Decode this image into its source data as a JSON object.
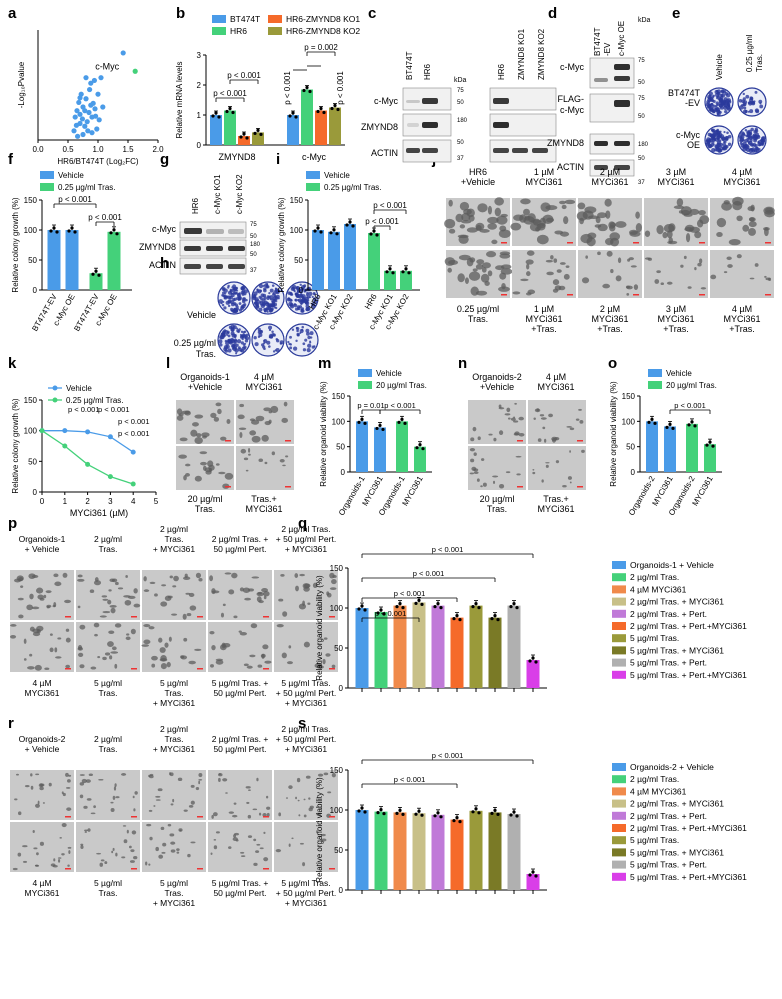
{
  "panel_labels": [
    "a",
    "b",
    "c",
    "d",
    "e",
    "f",
    "g",
    "h",
    "i",
    "j",
    "k",
    "l",
    "m",
    "n",
    "o",
    "p",
    "q",
    "r",
    "s"
  ],
  "colors": {
    "blue": "#4a9be8",
    "green": "#44d17a",
    "orange": "#f56a2a",
    "olive": "#9a9a3a",
    "salmon": "#f08a4b",
    "pistachio": "#c8c088",
    "purple": "#c07ad8",
    "darkolive": "#7a7a26",
    "grey": "#b0b0b0",
    "magenta": "#d93ee8"
  },
  "pvals": {
    "p001": "p < 0.001",
    "p002": "p = 0.002",
    "p01": "p = 0.01"
  },
  "a": {
    "chart_data": {
      "type": "scatter",
      "xlabel": "HR6/BT474T (Log₂FC)",
      "ylabel": "-Log₁₀Pvalue",
      "xlim": [
        0.0,
        2.0
      ],
      "ylim": [
        0,
        12
      ],
      "xticks": [
        "0.0",
        "0.5",
        "1.0",
        "1.5",
        "2.0"
      ],
      "annotation": "c-Myc",
      "highlight": {
        "x": 1.62,
        "y": 7.5
      },
      "points": [
        [
          0.62,
          2.5
        ],
        [
          0.65,
          3.2
        ],
        [
          0.68,
          4.1
        ],
        [
          0.7,
          2.8
        ],
        [
          0.72,
          5.0
        ],
        [
          0.75,
          3.6
        ],
        [
          0.78,
          1.5
        ],
        [
          0.8,
          4.5
        ],
        [
          0.82,
          2.0
        ],
        [
          0.85,
          3.0
        ],
        [
          0.86,
          5.5
        ],
        [
          0.88,
          6.2
        ],
        [
          0.9,
          2.5
        ],
        [
          0.92,
          4.0
        ],
        [
          0.95,
          3.4
        ],
        [
          0.98,
          1.2
        ],
        [
          1.0,
          5.0
        ],
        [
          1.02,
          2.2
        ],
        [
          1.05,
          6.8
        ],
        [
          0.6,
          1.0
        ],
        [
          0.7,
          1.8
        ],
        [
          0.75,
          0.6
        ],
        [
          0.83,
          1.0
        ],
        [
          0.9,
          0.8
        ],
        [
          0.96,
          2.6
        ],
        [
          1.08,
          3.6
        ],
        [
          0.66,
          0.4
        ],
        [
          0.74,
          2.3
        ],
        [
          0.88,
          3.8
        ],
        [
          0.94,
          6.5
        ],
        [
          0.8,
          6.8
        ],
        [
          0.7,
          4.6
        ],
        [
          1.42,
          9.5
        ],
        [
          0.64,
          1.6
        ],
        [
          0.78,
          3.2
        ]
      ]
    }
  },
  "b": {
    "chart_data": {
      "type": "bar",
      "ylabel": "Relative mRNA levels",
      "ylim": [
        0,
        3
      ],
      "yticks": [
        "0",
        "1",
        "2",
        "3"
      ],
      "categories": [
        "ZMYND8",
        "c-Myc"
      ],
      "series": [
        {
          "name": "BT474T",
          "values": [
            1.0,
            1.0
          ]
        },
        {
          "name": "HR6",
          "values": [
            1.15,
            1.85
          ]
        },
        {
          "name": "HR6-ZMYND8 KO1",
          "values": [
            0.3,
            1.15
          ]
        },
        {
          "name": "HR6-ZMYND8 KO2",
          "values": [
            0.42,
            1.25
          ]
        }
      ]
    }
  },
  "c": {
    "lanes1": [
      "BT474T",
      "HR6"
    ],
    "lanes2": [
      "HR6",
      "ZMYND8 KO1",
      "ZMYND8 KO2"
    ],
    "rows": [
      "c-Myc",
      "ZMYND8",
      "ACTIN"
    ],
    "kda": "kDa",
    "mw": [
      "75",
      "50",
      "180",
      "50",
      "37"
    ]
  },
  "d": {
    "lanes": [
      "BT474T-EV",
      "c-Myc OE"
    ],
    "rows": [
      "c-Myc",
      "FLAG-c-Myc",
      "ZMYND8",
      "ACTIN"
    ],
    "kda": "kDa",
    "mw": [
      "75",
      "50",
      "75",
      "50",
      "180",
      "50",
      "37"
    ]
  },
  "e": {
    "cols": [
      "Vehicle",
      "0.25 µg/ml Tras."
    ],
    "rows": [
      "BT474T-EV",
      "c-Myc OE"
    ]
  },
  "f": {
    "chart_data": {
      "type": "bar",
      "ylabel": "Relative colony growth (%)",
      "ylim": [
        0,
        150
      ],
      "yticks": [
        "0",
        "50",
        "100",
        "150"
      ],
      "categories": [
        "BT474T-EV",
        "c-Myc OE",
        "BT474T-EV",
        "c-Myc OE"
      ],
      "series": [
        {
          "name": "Vehicle",
          "values": [
            100,
            100,
            null,
            null
          ]
        },
        {
          "name": "0.25 µg/ml Tras.",
          "values": [
            null,
            null,
            28,
            97
          ]
        }
      ]
    }
  },
  "g": {
    "lanes": [
      "HR6",
      "c-Myc KO1",
      "c-Myc KO2"
    ],
    "rows": [
      "c-Myc",
      "ZMYND8",
      "ACTIN"
    ],
    "mw": [
      "75",
      "50",
      "180",
      "50",
      "37"
    ]
  },
  "h": {
    "rows": [
      "Vehicle",
      "0.25 µg/ml Tras."
    ]
  },
  "i": {
    "chart_data": {
      "type": "bar",
      "ylabel": "Relative colony growth (%)",
      "ylim": [
        0,
        150
      ],
      "yticks": [
        "0",
        "50",
        "100",
        "150"
      ],
      "categories": [
        "HR6",
        "c-Myc KO1",
        "c-Myc KO2",
        "HR6",
        "c-Myc KO1",
        "c-Myc KO2"
      ],
      "series": [
        {
          "name": "Vehicle",
          "values": [
            100,
            97,
            110,
            null,
            null,
            null
          ]
        },
        {
          "name": "0.25 µg/ml Tras.",
          "values": [
            null,
            null,
            null,
            95,
            32,
            32
          ]
        }
      ]
    }
  },
  "j": {
    "top": [
      "HR6 +Vehicle",
      "1 µM MYCi361",
      "2 µM MYCi361",
      "3 µM MYCi361",
      "4 µM MYCi361"
    ],
    "bottom": [
      "0.25 µg/ml Tras.",
      "1 µM MYCi361 +Tras.",
      "2 µM MYCi361 +Tras.",
      "3 µM MYCi361 +Tras.",
      "4 µM MYCi361 +Tras."
    ]
  },
  "k": {
    "chart_data": {
      "type": "line",
      "xlabel": "MYCi361 (µM)",
      "ylabel": "Relative colony growth (%)",
      "xlim": [
        0,
        5
      ],
      "ylim": [
        0,
        150
      ],
      "xticks": [
        "0",
        "1",
        "2",
        "3",
        "4",
        "5"
      ],
      "yticks": [
        "0",
        "50",
        "100",
        "150"
      ],
      "x": [
        0,
        1,
        2,
        3,
        4
      ],
      "series": [
        {
          "name": "Vehicle",
          "values": [
            100,
            100,
            98,
            90,
            65
          ]
        },
        {
          "name": "0.25 µg/ml Tras.",
          "values": [
            100,
            75,
            45,
            25,
            13
          ]
        }
      ]
    }
  },
  "l": {
    "top": [
      "Organoids-1 +Vehicle",
      "4 µM MYCi361"
    ],
    "bottom": [
      "20 µg/ml Tras.",
      "Tras.+ MYCi361"
    ]
  },
  "m": {
    "chart_data": {
      "type": "bar",
      "ylabel": "Relative organoid viability (%)",
      "ylim": [
        0,
        150
      ],
      "yticks": [
        "0",
        "50",
        "100",
        "150"
      ],
      "categories": [
        "Organoids-1",
        "MYCi361",
        "Organoids-1",
        "MYCi361"
      ],
      "series": [
        {
          "name": "Vehicle",
          "values": [
            100,
            88,
            null,
            null
          ]
        },
        {
          "name": "20 µg/ml Tras.",
          "values": [
            null,
            null,
            100,
            50
          ]
        }
      ]
    }
  },
  "n": {
    "top": [
      "Organoids-2 +Vehicle",
      "4 µM MYCi361"
    ],
    "bottom": [
      "20 µg/ml Tras.",
      "Tras.+ MYCi361"
    ]
  },
  "o": {
    "chart_data": {
      "type": "bar",
      "ylabel": "Relative organoid viability (%)",
      "ylim": [
        0,
        150
      ],
      "yticks": [
        "0",
        "50",
        "100",
        "150"
      ],
      "categories": [
        "Organoids-2",
        "MYCi361",
        "Organoids-2",
        "MYCi361"
      ],
      "series": [
        {
          "name": "Vehicle",
          "values": [
            100,
            90,
            null,
            null
          ]
        },
        {
          "name": "20 µg/ml Tras.",
          "values": [
            null,
            null,
            95,
            55
          ]
        }
      ]
    }
  },
  "p": {
    "top": [
      "Organoids-1 + Vehicle",
      "2 µg/ml Tras.",
      "2 µg/ml Tras. + MYCi361",
      "2 µg/ml Tras. + 50 µg/ml Pert.",
      "2 µg/ml Tras. + 50 µg/ml Pert. + MYCi361"
    ],
    "bottom": [
      "4 µM MYCi361",
      "5 µg/ml Tras.",
      "5 µg/ml Tras. + MYCi361",
      "5 µg/ml Tras. + 50 µg/ml Pert.",
      "5 µg/ml Tras. + 50 µg/ml Pert. + MYCi361"
    ]
  },
  "q": {
    "chart_data": {
      "type": "bar",
      "ylabel": "Relative organoid viability (%)",
      "ylim": [
        0,
        150
      ],
      "yticks": [
        "0",
        "50",
        "100",
        "150"
      ],
      "legend": [
        "Organoids-1 + Vehicle",
        "2 µg/ml Tras.",
        "4 µM MYCi361",
        "2 µg/ml Tras. + MYCi361",
        "2 µg/ml Tras. + Pert.",
        "2 µg/ml Tras. + Pert.+MYCi361",
        "5 µg/ml Tras.",
        "5 µg/ml Tras. + MYCi361",
        "5 µg/ml Tras. + Pert.",
        "5 µg/ml Tras. + Pert.+MYCi361"
      ],
      "values": [
        100,
        95,
        103,
        107,
        103,
        88,
        103,
        88,
        103,
        35
      ]
    }
  },
  "r": {
    "top": [
      "Organoids-2 + Vehicle",
      "2 µg/ml Tras.",
      "2 µg/ml Tras. + MYCi361",
      "2 µg/ml Tras. + 50 µg/ml Pert.",
      "2 µg/ml Tras. + 50 µg/ml Pert. + MYCi361"
    ],
    "bottom": [
      "4 µM MYCi361",
      "5 µg/ml Tras.",
      "5 µg/ml Tras. + MYCi361",
      "5 µg/ml Tras. + 50 µg/ml Pert.",
      "5 µg/ml Tras. + 50 µg/ml Pert. + MYCi361"
    ]
  },
  "s": {
    "chart_data": {
      "type": "bar",
      "ylabel": "Relative organoid viability (%)",
      "ylim": [
        0,
        150
      ],
      "yticks": [
        "0",
        "50",
        "100",
        "150"
      ],
      "legend": [
        "Organoids-2 + Vehicle",
        "2 µg/ml Tras.",
        "4 µM MYCi361",
        "2 µg/ml Tras. + MYCi361",
        "2 µg/ml Tras. + Pert.",
        "2 µg/ml Tras. + Pert.+MYCi361",
        "5 µg/ml Tras.",
        "5 µg/ml Tras. + MYCi361",
        "5 µg/ml Tras. + Pert.",
        "5 µg/ml Tras. + Pert.+MYCi361"
      ],
      "values": [
        100,
        98,
        97,
        96,
        94,
        88,
        99,
        97,
        95,
        20
      ]
    }
  }
}
